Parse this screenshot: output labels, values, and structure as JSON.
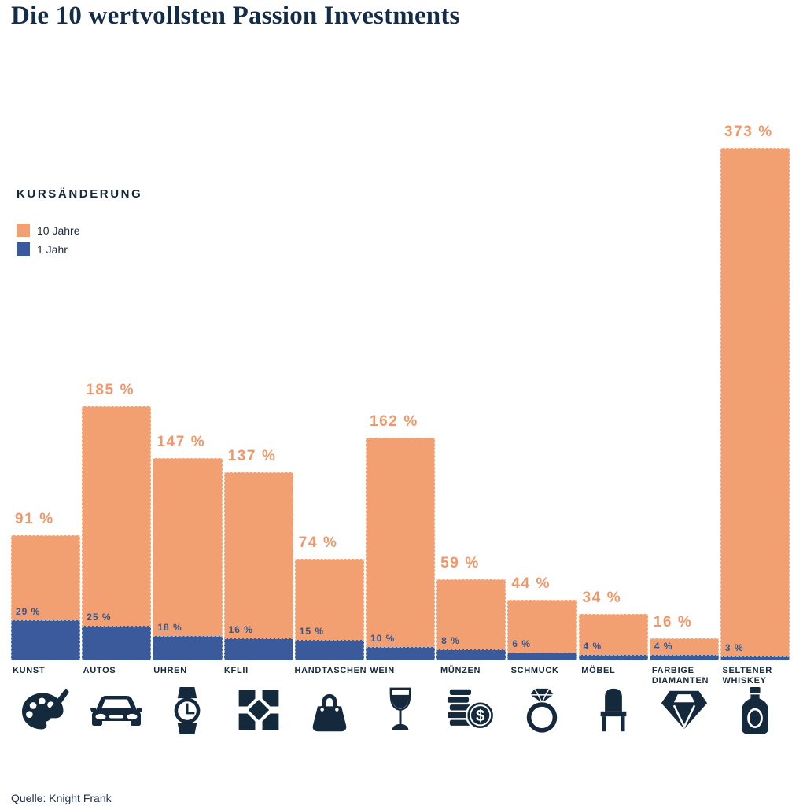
{
  "title": "Die 10 wertvollsten Passion Investments",
  "source": "Quelle: Knight Frank",
  "legend": {
    "heading": "KURSÄNDERUNG",
    "items": [
      {
        "label": "10 Jahre",
        "color": "#F2A072"
      },
      {
        "label": "1 Jahr",
        "color": "#3A5A9B"
      }
    ]
  },
  "colors": {
    "title_text": "#132C49",
    "category_text": "#15293C",
    "icon": "#15293C",
    "orange_bar": "#F2A072",
    "orange_value_label": "#F0986B",
    "blue_bar": "#3A5A9B",
    "blue_value_label": "#33568F"
  },
  "chart_data": {
    "type": "bar",
    "title": "Die 10 wertvollsten Passion Investments",
    "categories": [
      "KUNST",
      "AUTOS",
      "UHREN",
      "KFLII",
      "HANDTASCHEN",
      "WEIN",
      "MÜNZEN",
      "SCHMUCK",
      "MÖBEL",
      "FARBIGE DIAMANTEN",
      "SELTENER WHISKEY"
    ],
    "category_icons": [
      "palette-icon",
      "car-icon",
      "watch-icon",
      "kflii-logo-icon",
      "handbag-icon",
      "wine-glass-icon",
      "coins-icon",
      "ring-icon",
      "chair-icon",
      "diamond-icon",
      "whiskey-bottle-icon"
    ],
    "series": [
      {
        "name": "10 Jahre",
        "color": "#F2A072",
        "values": [
          91,
          185,
          147,
          137,
          74,
          162,
          59,
          44,
          34,
          16,
          373
        ]
      },
      {
        "name": "1 Jahr",
        "color": "#3A5A9B",
        "values": [
          29,
          25,
          18,
          16,
          15,
          10,
          8,
          6,
          4,
          4,
          3
        ]
      }
    ],
    "value_suffix": " %",
    "ylim": [
      0,
      373
    ],
    "grid": false,
    "legend_position": "upper-left",
    "bar_value_labels": true
  }
}
